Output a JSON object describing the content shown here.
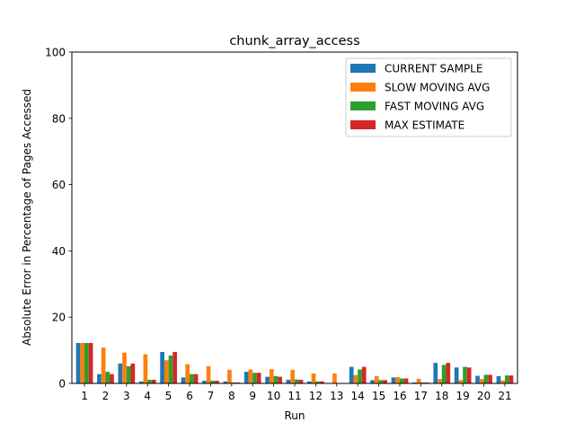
{
  "chart_data": {
    "type": "bar",
    "title": "chunk_array_access",
    "xlabel": "Run",
    "ylabel": "Absolute Error in Percentage of Pages Accessed",
    "ylim": [
      0,
      100
    ],
    "yticks": [
      0,
      20,
      40,
      60,
      80,
      100
    ],
    "grid": false,
    "legend_position": "top-right",
    "categories": [
      "1",
      "2",
      "3",
      "4",
      "5",
      "6",
      "7",
      "8",
      "9",
      "10",
      "11",
      "12",
      "13",
      "14",
      "15",
      "16",
      "17",
      "18",
      "19",
      "20",
      "21"
    ],
    "series": [
      {
        "name": "CURRENT SAMPLE",
        "color": "#1f77b4",
        "values": [
          12.2,
          2.8,
          6.0,
          0.6,
          9.5,
          1.8,
          0.8,
          0.6,
          3.5,
          2.0,
          1.1,
          0.6,
          0.0,
          5.0,
          1.0,
          1.8,
          0.3,
          6.2,
          4.8,
          2.3,
          2.2
        ]
      },
      {
        "name": "SLOW MOVING AVG",
        "color": "#ff7f0e",
        "values": [
          12.2,
          10.8,
          9.3,
          8.8,
          7.0,
          5.8,
          5.2,
          4.1,
          4.2,
          4.3,
          4.1,
          3.0,
          3.0,
          2.5,
          2.2,
          1.9,
          1.4,
          1.3,
          1.0,
          1.3,
          0.9
        ]
      },
      {
        "name": "FAST MOVING AVG",
        "color": "#2ca02c",
        "values": [
          12.2,
          3.5,
          5.2,
          1.1,
          8.4,
          2.8,
          0.8,
          0.3,
          3.2,
          2.2,
          1.2,
          0.6,
          0.0,
          4.2,
          1.0,
          1.5,
          0.3,
          5.6,
          5.0,
          2.6,
          2.4
        ]
      },
      {
        "name": "MAX ESTIMATE",
        "color": "#d62728",
        "values": [
          12.2,
          2.8,
          6.0,
          1.1,
          9.5,
          2.8,
          0.8,
          0.3,
          3.2,
          2.0,
          1.1,
          0.6,
          0.0,
          5.0,
          1.0,
          1.5,
          0.3,
          6.2,
          4.8,
          2.6,
          2.4
        ]
      }
    ]
  }
}
